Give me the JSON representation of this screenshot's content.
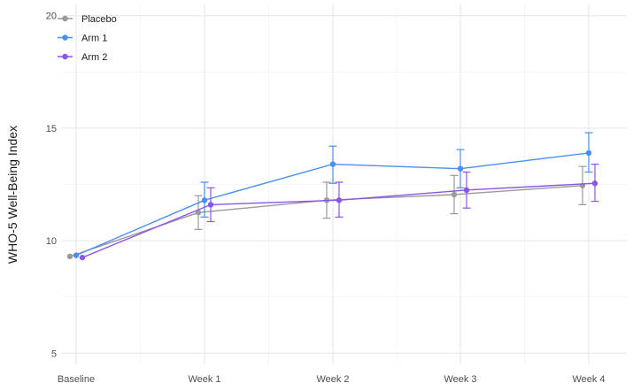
{
  "chart_data": {
    "type": "line",
    "title": "",
    "xlabel": "",
    "ylabel": "WHO-5 Well-Being Index",
    "categories": [
      "Baseline",
      "Week 1",
      "Week 2",
      "Week 3",
      "Week 4"
    ],
    "ylim": [
      4.5,
      20.5
    ],
    "yticks": [
      5,
      10,
      15,
      20
    ],
    "grid": true,
    "legend_position": "top-left",
    "error_bars": true,
    "series": [
      {
        "name": "Placebo",
        "color": "#999999",
        "values": [
          9.3,
          11.25,
          11.8,
          12.05,
          12.45
        ],
        "lower": [
          null,
          10.5,
          11.0,
          11.2,
          11.6
        ],
        "upper": [
          null,
          12.0,
          12.6,
          12.9,
          13.3
        ]
      },
      {
        "name": "Arm 1",
        "color": "#4a8ef0",
        "values": [
          9.35,
          11.8,
          13.4,
          13.2,
          13.9
        ],
        "lower": [
          null,
          11.05,
          12.55,
          12.35,
          13.05
        ],
        "upper": [
          null,
          12.6,
          14.2,
          14.05,
          14.8
        ]
      },
      {
        "name": "Arm 2",
        "color": "#8b55e8",
        "values": [
          9.25,
          11.6,
          11.8,
          12.25,
          12.55
        ],
        "lower": [
          null,
          10.85,
          11.05,
          11.45,
          11.75
        ],
        "upper": [
          null,
          12.35,
          12.6,
          13.05,
          13.4
        ]
      }
    ]
  }
}
